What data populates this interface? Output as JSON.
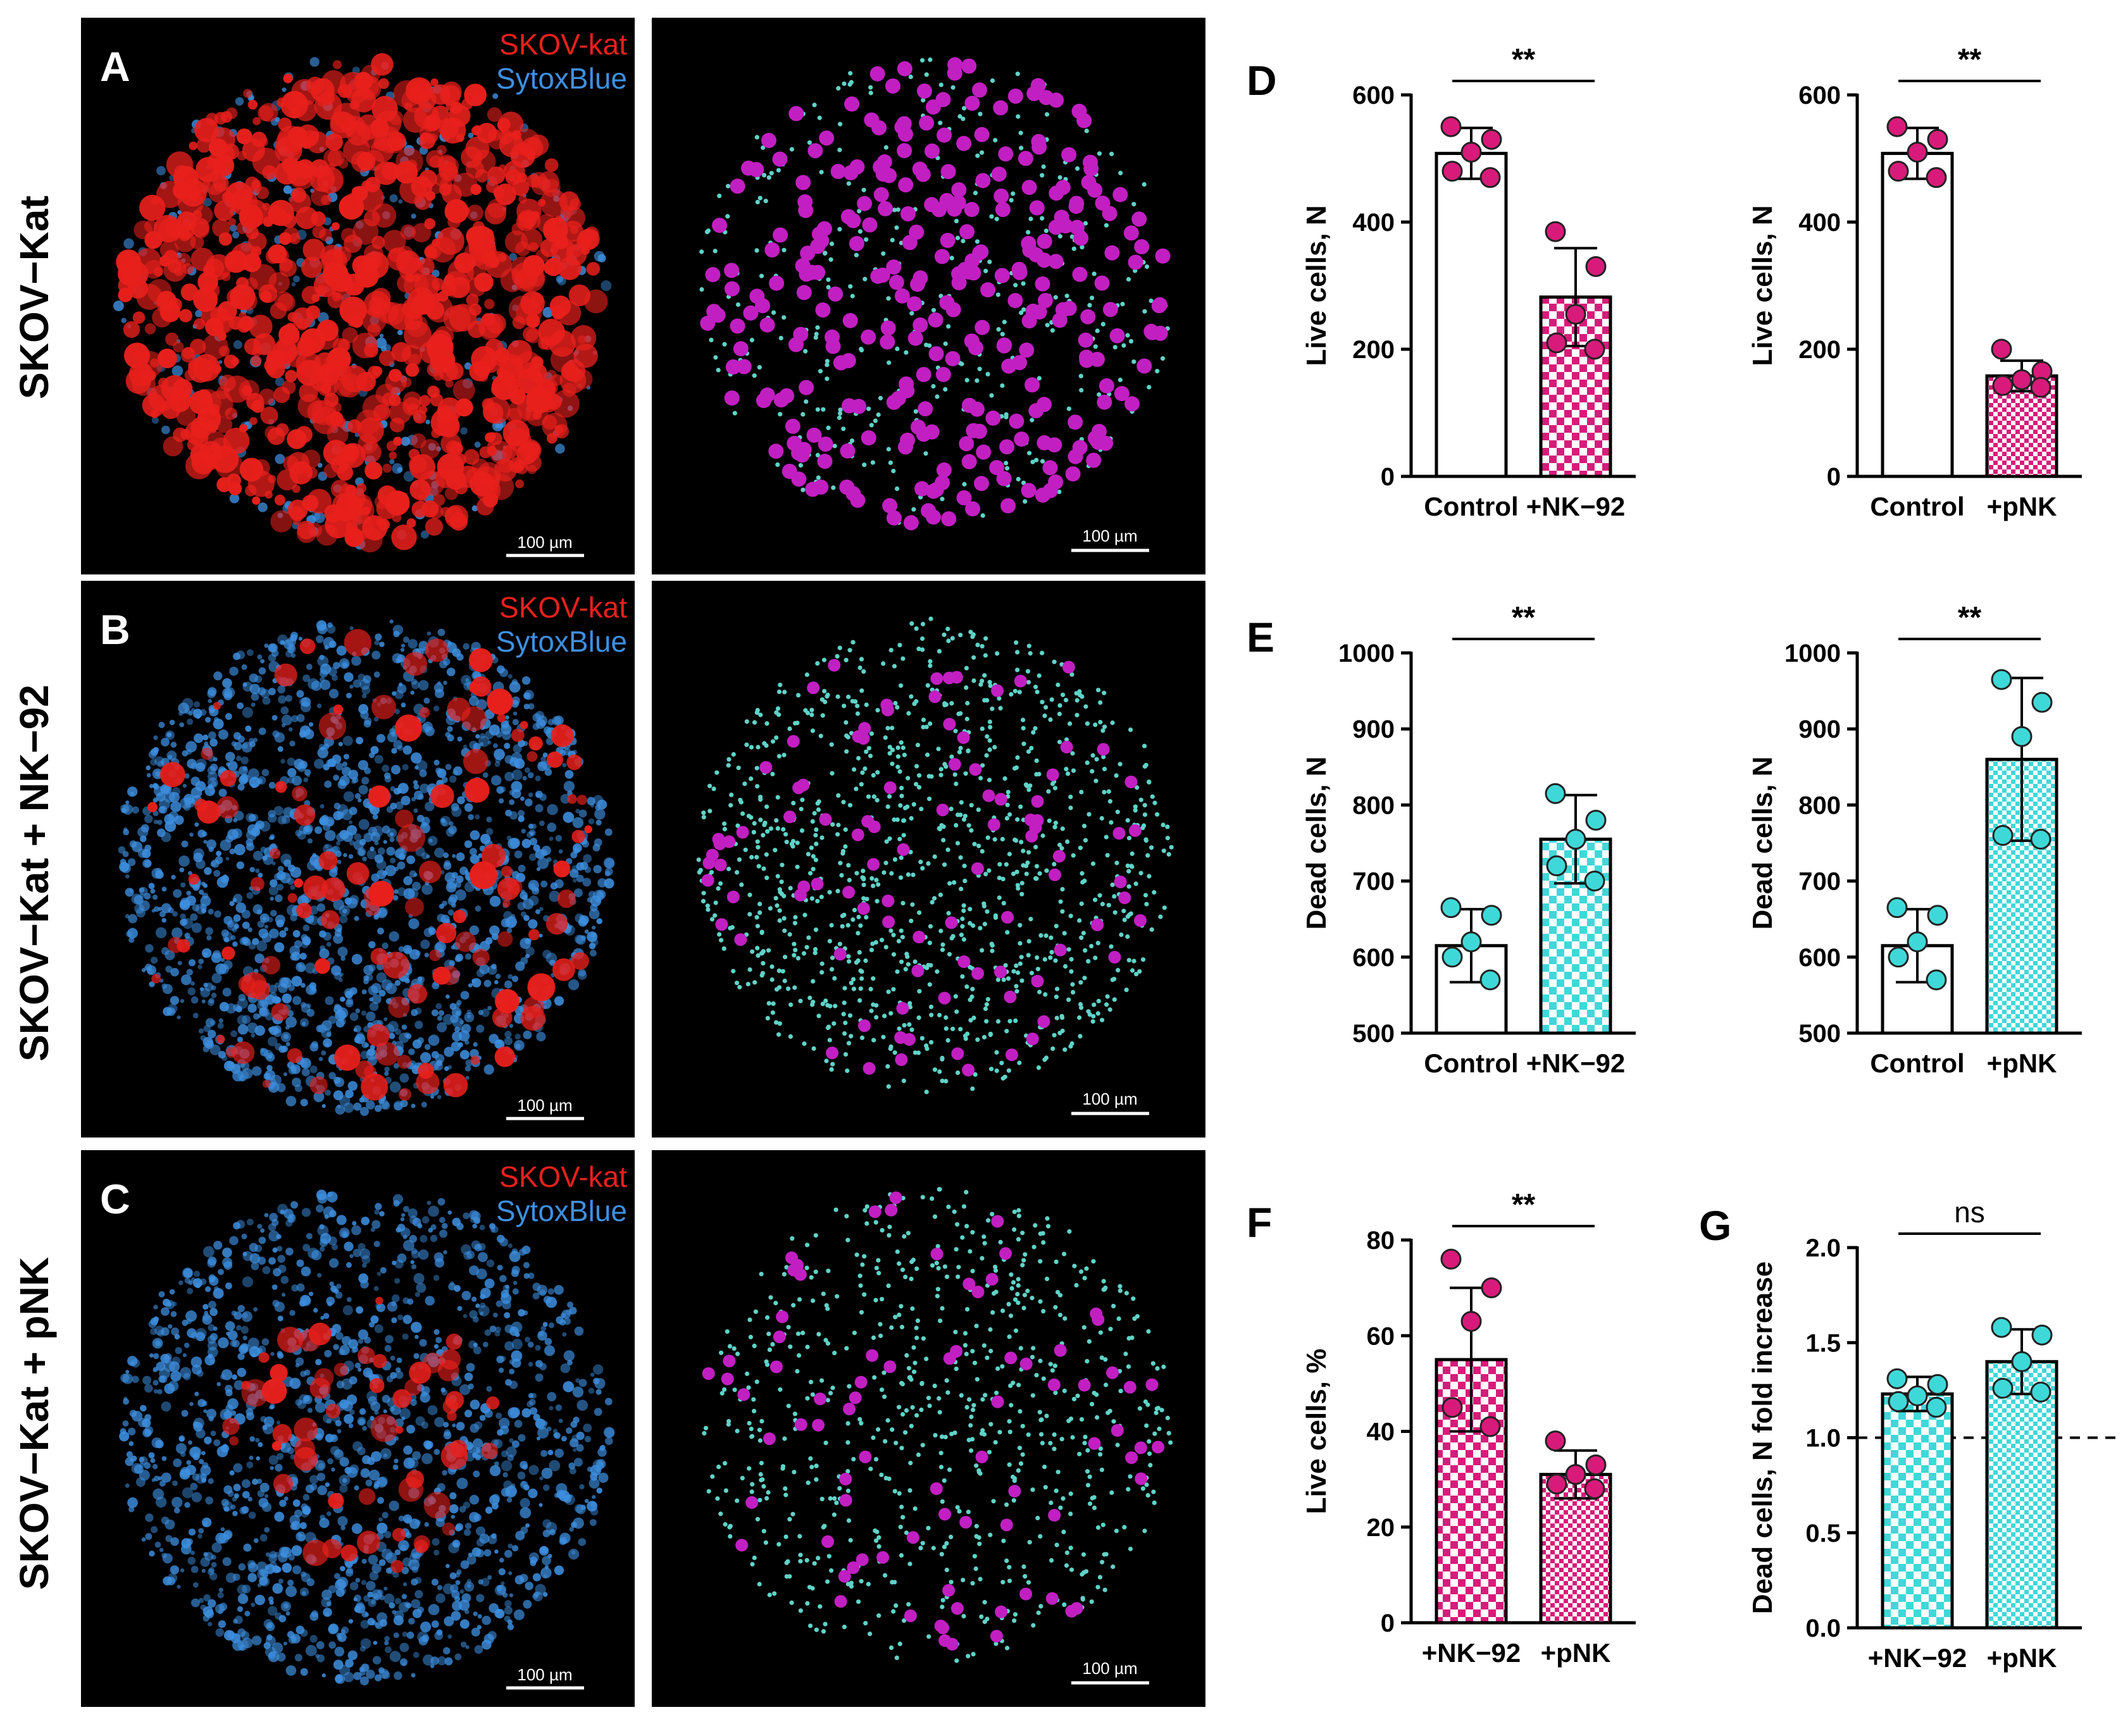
{
  "rows": [
    {
      "label": "SKOV−Kat"
    },
    {
      "label": "SKOV−Kat + NK−92"
    },
    {
      "label": "SKOV−Kat + pNK"
    }
  ],
  "images": [
    {
      "letter": "A",
      "legend_red": "SKOV-kat",
      "legend_blue": "SytoxBlue",
      "scale_left": "100 µm",
      "scale_right": "100 µm"
    },
    {
      "letter": "B",
      "legend_red": "SKOV-kat",
      "legend_blue": "SytoxBlue",
      "scale_left": "100 µm",
      "scale_right": "100 µm"
    },
    {
      "letter": "C",
      "legend_red": "SKOV-kat",
      "legend_blue": "SytoxBlue",
      "scale_left": "100 µm",
      "scale_right": "100 µm"
    }
  ],
  "colors": {
    "live": "#d81b7a",
    "dead": "#3fd8d8",
    "live_render": "#c21fc2",
    "dead_render": "#5fd3c8",
    "micro_red": "#e8201c",
    "micro_blue": "#3d8fe0"
  },
  "chart_data": [
    {
      "id": "D1",
      "panel_letter": "D",
      "type": "bar",
      "ylabel": "Live cells, N",
      "ylim": [
        0,
        600
      ],
      "yticks": [
        "0",
        "200",
        "400",
        "600"
      ],
      "categories": [
        "Control",
        "+NK−92"
      ],
      "values": [
        508,
        282
      ],
      "errors": [
        40,
        77
      ],
      "fills": [
        "white",
        "live"
      ],
      "points": [
        [
          550,
          530,
          510,
          480,
          470
        ],
        [
          385,
          330,
          255,
          210,
          200
        ]
      ],
      "point_color": "live",
      "sig": "**"
    },
    {
      "id": "D2",
      "panel_letter": "",
      "type": "bar",
      "ylabel": "Live cells, N",
      "ylim": [
        0,
        600
      ],
      "yticks": [
        "0",
        "200",
        "400",
        "600"
      ],
      "categories": [
        "Control",
        "+pNK"
      ],
      "values": [
        508,
        158
      ],
      "errors": [
        40,
        24
      ],
      "fills": [
        "white",
        "live"
      ],
      "points": [
        [
          550,
          530,
          510,
          480,
          470
        ],
        [
          200,
          165,
          152,
          143,
          140
        ]
      ],
      "point_color": "live",
      "sig": "**"
    },
    {
      "id": "E1",
      "panel_letter": "E",
      "type": "bar",
      "ylabel": "Dead cells, N",
      "ylim": [
        500,
        1000
      ],
      "yticks": [
        "500",
        "600",
        "700",
        "800",
        "900",
        "1000"
      ],
      "categories": [
        "Control",
        "+NK−92"
      ],
      "values": [
        615,
        755
      ],
      "errors": [
        48,
        58
      ],
      "fills": [
        "white",
        "dead"
      ],
      "points": [
        [
          665,
          655,
          620,
          600,
          570
        ],
        [
          815,
          780,
          755,
          720,
          700
        ]
      ],
      "point_color": "dead",
      "sig": "**"
    },
    {
      "id": "E2",
      "panel_letter": "",
      "type": "bar",
      "ylabel": "Dead cells, N",
      "ylim": [
        500,
        1000
      ],
      "yticks": [
        "500",
        "600",
        "700",
        "800",
        "900",
        "1000"
      ],
      "categories": [
        "Control",
        "+pNK"
      ],
      "values": [
        615,
        860
      ],
      "errors": [
        48,
        107
      ],
      "fills": [
        "white",
        "dead"
      ],
      "points": [
        [
          665,
          655,
          620,
          600,
          570
        ],
        [
          965,
          935,
          890,
          760,
          755
        ]
      ],
      "point_color": "dead",
      "sig": "**"
    },
    {
      "id": "F",
      "panel_letter": "F",
      "type": "bar",
      "ylabel": "Live cells, %",
      "ylim": [
        0,
        80
      ],
      "yticks": [
        "0",
        "20",
        "40",
        "60",
        "80"
      ],
      "categories": [
        "+NK−92",
        "+pNK"
      ],
      "values": [
        55,
        31
      ],
      "errors": [
        15,
        5
      ],
      "fills": [
        "live",
        "live"
      ],
      "points": [
        [
          76,
          70,
          63,
          45,
          41
        ],
        [
          38,
          33,
          31,
          29,
          28
        ]
      ],
      "point_color": "live",
      "sig": "**"
    },
    {
      "id": "G",
      "panel_letter": "G",
      "type": "bar",
      "ylabel": "Dead cells, N fold increase",
      "ylim": [
        0,
        2
      ],
      "yticks": [
        "0.0",
        "0.5",
        "1.0",
        "1.5",
        "2.0"
      ],
      "categories": [
        "+NK−92",
        "+pNK"
      ],
      "values": [
        1.23,
        1.4
      ],
      "errors": [
        0.09,
        0.17
      ],
      "fills": [
        "dead",
        "dead"
      ],
      "points": [
        [
          1.31,
          1.28,
          1.22,
          1.19,
          1.16
        ],
        [
          1.58,
          1.54,
          1.4,
          1.26,
          1.24
        ]
      ],
      "point_color": "dead",
      "sig": "ns",
      "refline": 1.0
    }
  ]
}
